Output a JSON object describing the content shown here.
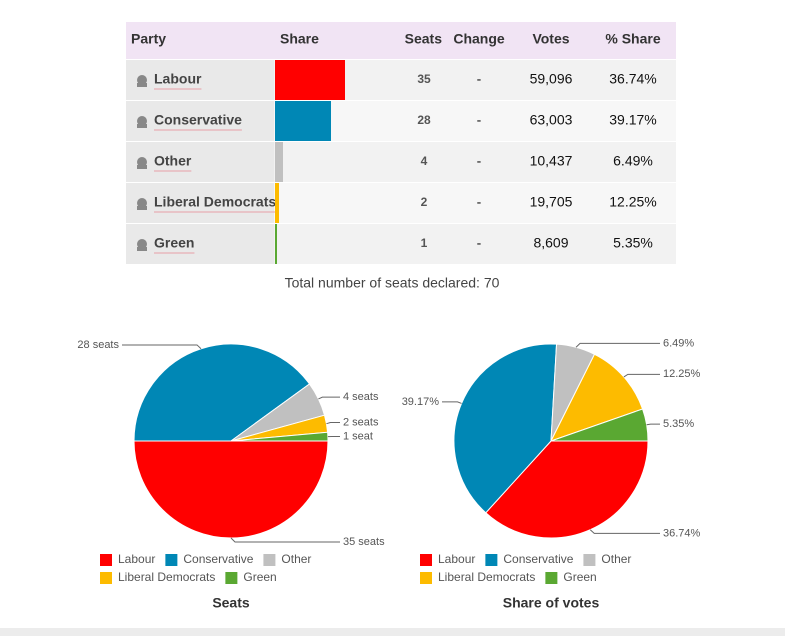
{
  "table": {
    "headers": [
      "Party",
      "Share",
      "Seats",
      "Change",
      "Votes",
      "% Share"
    ],
    "rows": [
      {
        "party": "Labour",
        "color": "#ff0000",
        "seats": 35,
        "change": "-",
        "votes": "59,096",
        "share": "36.74%"
      },
      {
        "party": "Conservative",
        "color": "#0087b5",
        "seats": 28,
        "change": "-",
        "votes": "63,003",
        "share": "39.17%"
      },
      {
        "party": "Other",
        "color": "#c0c0c0",
        "seats": 4,
        "change": "-",
        "votes": "10,437",
        "share": "6.49%"
      },
      {
        "party": "Liberal Democrats",
        "color": "#fdbb00",
        "seats": 2,
        "change": "-",
        "votes": "19,705",
        "share": "12.25%"
      },
      {
        "party": "Green",
        "color": "#5aa832",
        "seats": 1,
        "change": "-",
        "votes": "8,609",
        "share": "5.35%"
      }
    ]
  },
  "total": "Total number of seats declared: 70",
  "chart_data": [
    {
      "type": "pie",
      "title": "Seats",
      "categories": [
        "Labour",
        "Conservative",
        "Other",
        "Liberal Democrats",
        "Green"
      ],
      "values": [
        35,
        28,
        4,
        2,
        1
      ],
      "value_labels": [
        "35 seats",
        "28 seats",
        "4 seats",
        "2 seats",
        "1 seat"
      ],
      "colors": [
        "#ff0000",
        "#0087b5",
        "#c0c0c0",
        "#fdbb00",
        "#5aa832"
      ]
    },
    {
      "type": "pie",
      "title": "Share of votes",
      "categories": [
        "Labour",
        "Conservative",
        "Other",
        "Liberal Democrats",
        "Green"
      ],
      "values": [
        36.74,
        39.17,
        6.49,
        12.25,
        5.35
      ],
      "value_labels": [
        "36.74%",
        "39.17%",
        "6.49%",
        "12.25%",
        "5.35%"
      ],
      "colors": [
        "#ff0000",
        "#0087b5",
        "#c0c0c0",
        "#fdbb00",
        "#5aa832"
      ]
    }
  ]
}
